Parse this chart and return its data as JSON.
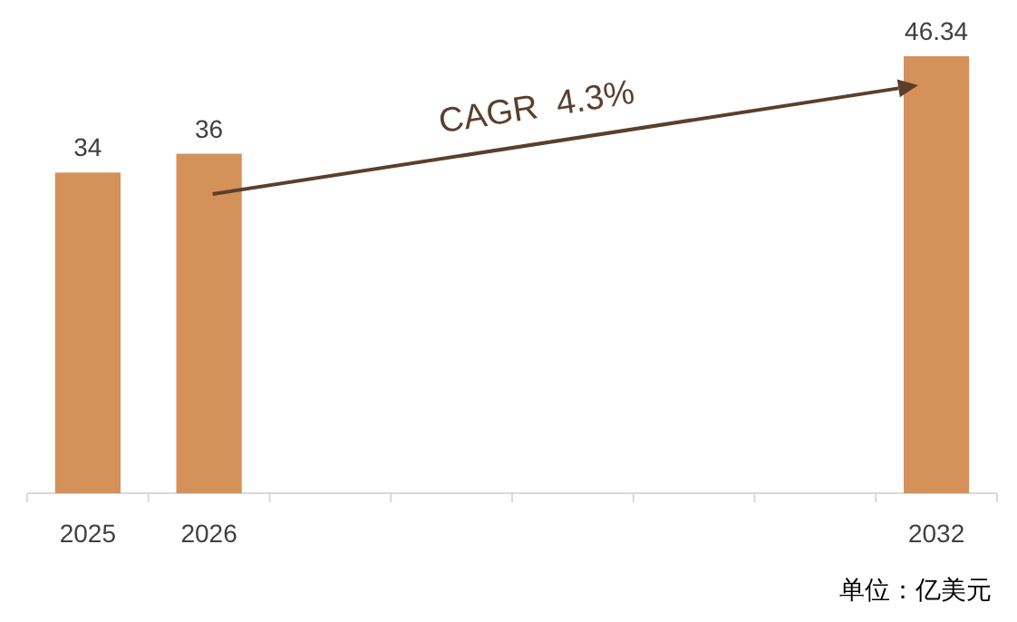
{
  "chart_data": {
    "type": "bar",
    "categories": [
      "2025",
      "2026",
      null,
      null,
      null,
      null,
      null,
      "2032"
    ],
    "values": [
      34,
      36,
      null,
      null,
      null,
      null,
      null,
      46.34
    ],
    "color": "#d5915a",
    "data_labels": true,
    "annotations": [
      "CAGR  4.3%",
      "单位：亿美元"
    ]
  }
}
